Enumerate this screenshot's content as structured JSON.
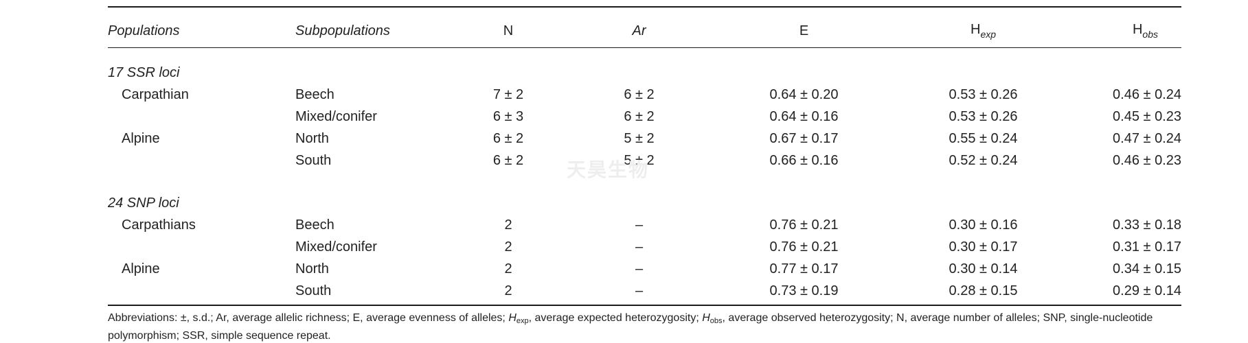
{
  "table": {
    "headers": {
      "populations": "Populations",
      "subpopulations": "Subpopulations",
      "n": "N",
      "ar": "Ar",
      "e": "E",
      "hexp_base": "H",
      "hexp_sub": "exp",
      "hobs_base": "H",
      "hobs_sub": "obs"
    },
    "sections": [
      {
        "title": "17 SSR loci",
        "rows": [
          {
            "population": "Carpathian",
            "subpopulation": "Beech",
            "n": "7 ± 2",
            "ar": "6 ± 2",
            "e": "0.64 ± 0.20",
            "hexp": "0.53 ± 0.26",
            "hobs": "0.46 ± 0.24"
          },
          {
            "population": "",
            "subpopulation": "Mixed/conifer",
            "n": "6 ± 3",
            "ar": "6 ± 2",
            "e": "0.64 ± 0.16",
            "hexp": "0.53 ± 0.26",
            "hobs": "0.45 ± 0.23"
          },
          {
            "population": "Alpine",
            "subpopulation": "North",
            "n": "6 ± 2",
            "ar": "5 ± 2",
            "e": "0.67 ± 0.17",
            "hexp": "0.55 ± 0.24",
            "hobs": "0.47 ± 0.24"
          },
          {
            "population": "",
            "subpopulation": "South",
            "n": "6 ± 2",
            "ar": "5 ± 2",
            "e": "0.66 ± 0.16",
            "hexp": "0.52 ± 0.24",
            "hobs": "0.46 ± 0.23"
          }
        ]
      },
      {
        "title": "24 SNP loci",
        "rows": [
          {
            "population": "Carpathians",
            "subpopulation": "Beech",
            "n": "2",
            "ar": "–",
            "e": "0.76 ± 0.21",
            "hexp": "0.30 ± 0.16",
            "hobs": "0.33 ± 0.18"
          },
          {
            "population": "",
            "subpopulation": "Mixed/conifer",
            "n": "2",
            "ar": "–",
            "e": "0.76 ± 0.21",
            "hexp": "0.30 ± 0.17",
            "hobs": "0.31 ± 0.17"
          },
          {
            "population": "Alpine",
            "subpopulation": "North",
            "n": "2",
            "ar": "–",
            "e": "0.77 ± 0.17",
            "hexp": "0.30 ± 0.14",
            "hobs": "0.34 ± 0.15"
          },
          {
            "population": "",
            "subpopulation": "South",
            "n": "2",
            "ar": "–",
            "e": "0.73 ± 0.19",
            "hexp": "0.28 ± 0.15",
            "hobs": "0.29 ± 0.14"
          }
        ]
      }
    ]
  },
  "footnote": {
    "part1": "Abbreviations: ±, s.d.; Ar, average allelic richness; E, average evenness of alleles; ",
    "hexp_base": "H",
    "hexp_sub": "exp",
    "part2": ", average expected heterozygosity; ",
    "hobs_base": "H",
    "hobs_sub": "obs",
    "part3": ", average observed heterozygosity; N, average number of alleles; SNP, single-nucleotide polymorphism; SSR, simple sequence repeat."
  },
  "watermark": {
    "text": "天昊生物"
  }
}
